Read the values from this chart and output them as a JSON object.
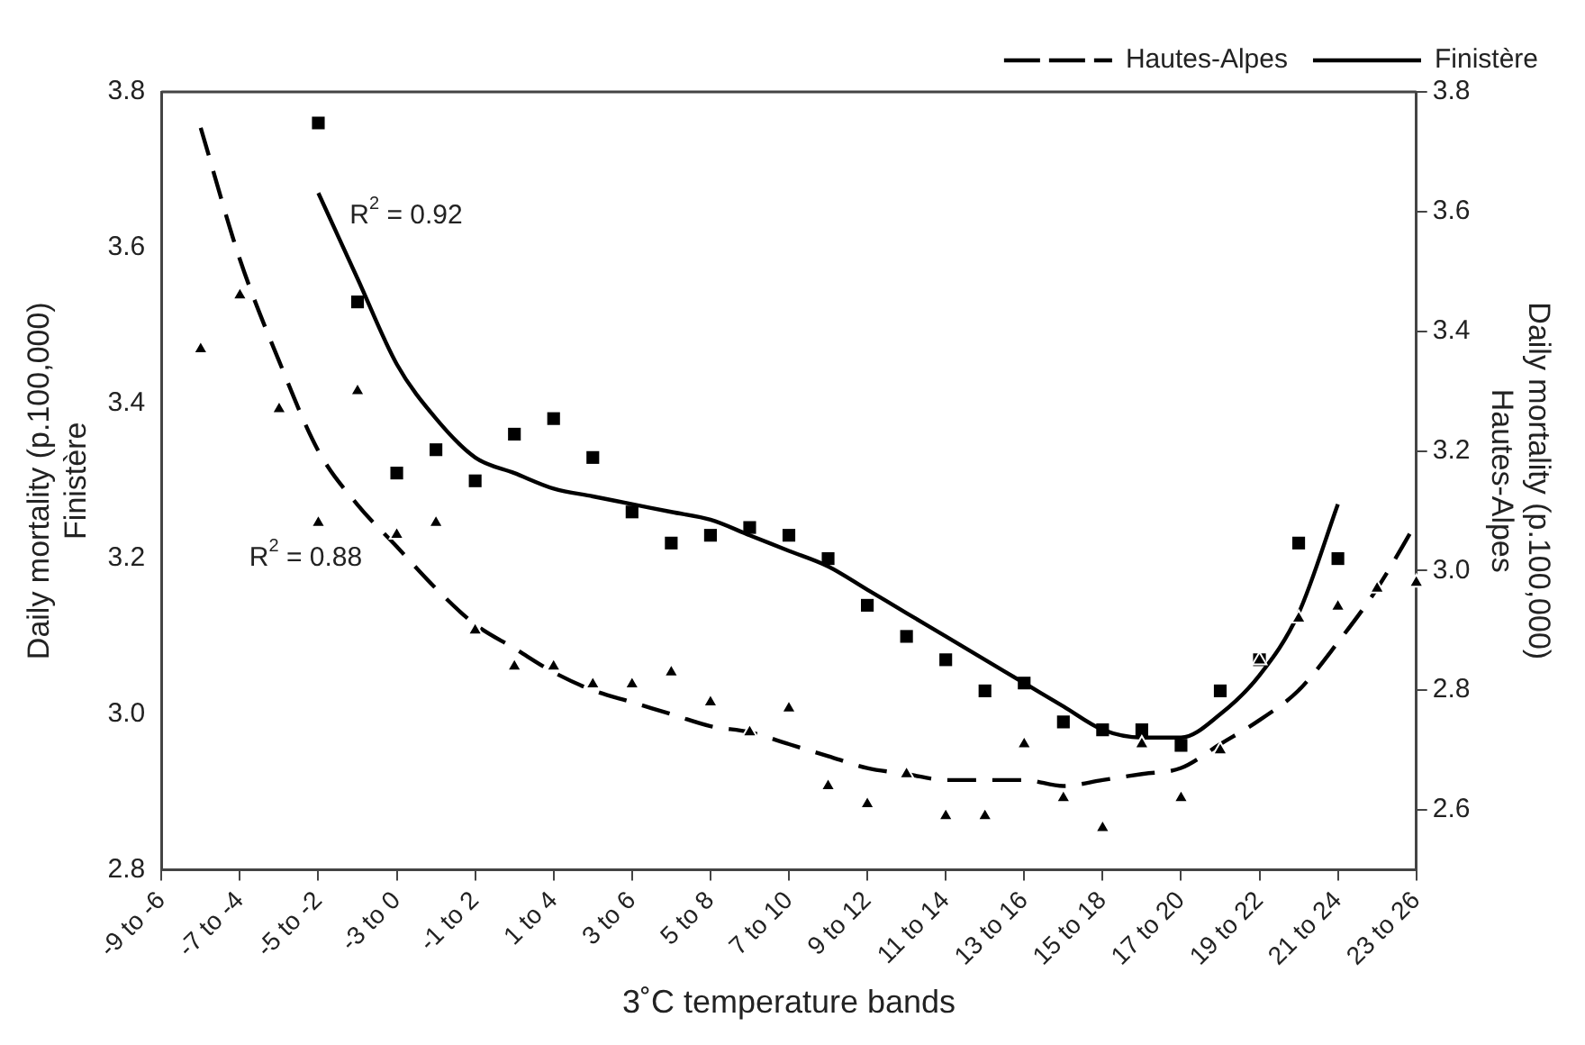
{
  "chart_data": {
    "type": "line",
    "xlabel": "3˚C temperature bands",
    "ylabel": "Daily mortality (p.100,000)\nFinistère",
    "y2label": "Daily mortality (p.100,000)\nHautes-Alpes",
    "categories": [
      "-9 to -6",
      null,
      "-7 to -4",
      null,
      "-5 to -2",
      null,
      "-3 to 0",
      null,
      "-1 to 2",
      null,
      "1 to 4",
      null,
      "3 to 6",
      null,
      "5 to 8",
      null,
      "7 to 10",
      null,
      "9 to 12",
      null,
      "11 to 14",
      null,
      "13 to 16",
      null,
      "15 to 18",
      null,
      "17 to 20",
      null,
      "19 to 22",
      null,
      "21 to 24",
      null,
      "23 to 26"
    ],
    "ylim": [
      2.8,
      3.8
    ],
    "yticks": [
      2.8,
      {
        "value": 3,
        "label": "3.0"
      },
      3.2,
      3.4,
      3.6,
      3.8
    ],
    "y2lim": [
      2.5,
      3.8
    ],
    "y2ticks": [
      2.6,
      2.8,
      {
        "value": 3,
        "label": "3.0"
      },
      3.2,
      3.4,
      3.6,
      3.8
    ],
    "grid": false,
    "legend": "top right",
    "series": [
      {
        "type": "scatter",
        "axis": "y2",
        "marker": "triangle",
        "color": "#000000",
        "values": [
          null,
          3.37,
          3.46,
          3.27,
          3.08,
          3.3,
          3.06,
          3.08,
          2.9,
          2.84,
          2.84,
          2.81,
          2.81,
          2.83,
          2.78,
          2.73,
          2.77,
          2.64,
          2.61,
          2.66,
          2.59,
          2.59,
          2.71,
          2.62,
          2.57,
          2.71,
          2.62,
          2.7,
          2.85,
          2.92,
          2.94,
          2.97,
          2.98
        ]
      },
      {
        "type": "scatter",
        "axis": "y",
        "marker": "square",
        "color": "#000000",
        "values": [
          null,
          null,
          null,
          null,
          3.76,
          3.53,
          3.31,
          3.34,
          3.3,
          3.36,
          3.38,
          3.33,
          3.26,
          3.22,
          3.23,
          3.24,
          3.23,
          3.2,
          3.14,
          3.1,
          3.07,
          3.03,
          3.04,
          2.99,
          2.98,
          2.98,
          2.96,
          3.03,
          3.07,
          3.22,
          3.2,
          null,
          null
        ]
      },
      {
        "type": "line",
        "axis": "y2",
        "name": "Hautes-Alpes",
        "line_style": "dashed",
        "marker": "none",
        "color": "#000000",
        "values": [
          null,
          3.74,
          3.52,
          3.35,
          3.2,
          3.11,
          3.04,
          2.97,
          2.91,
          2.87,
          2.83,
          2.8,
          2.78,
          2.76,
          2.74,
          2.73,
          2.71,
          2.69,
          2.67,
          2.66,
          2.65,
          2.65,
          2.65,
          2.64,
          2.65,
          2.66,
          2.67,
          2.71,
          2.75,
          2.8,
          2.88,
          2.97,
          3.08
        ]
      },
      {
        "type": "line",
        "axis": "y",
        "name": "Finistère",
        "line_style": "solid",
        "marker": "none",
        "color": "#000000",
        "values": [
          null,
          null,
          null,
          null,
          3.67,
          3.56,
          3.45,
          3.38,
          3.33,
          3.31,
          3.29,
          3.28,
          3.27,
          3.26,
          3.25,
          3.23,
          3.21,
          3.19,
          3.16,
          3.13,
          3.1,
          3.07,
          3.04,
          3.01,
          2.98,
          2.97,
          2.97,
          3,
          3.05,
          3.13,
          3.27,
          null,
          null
        ]
      }
    ],
    "annotations": [
      "R$^{2}$ = 0.92",
      "R$^{2}$ = 0.88"
    ]
  }
}
